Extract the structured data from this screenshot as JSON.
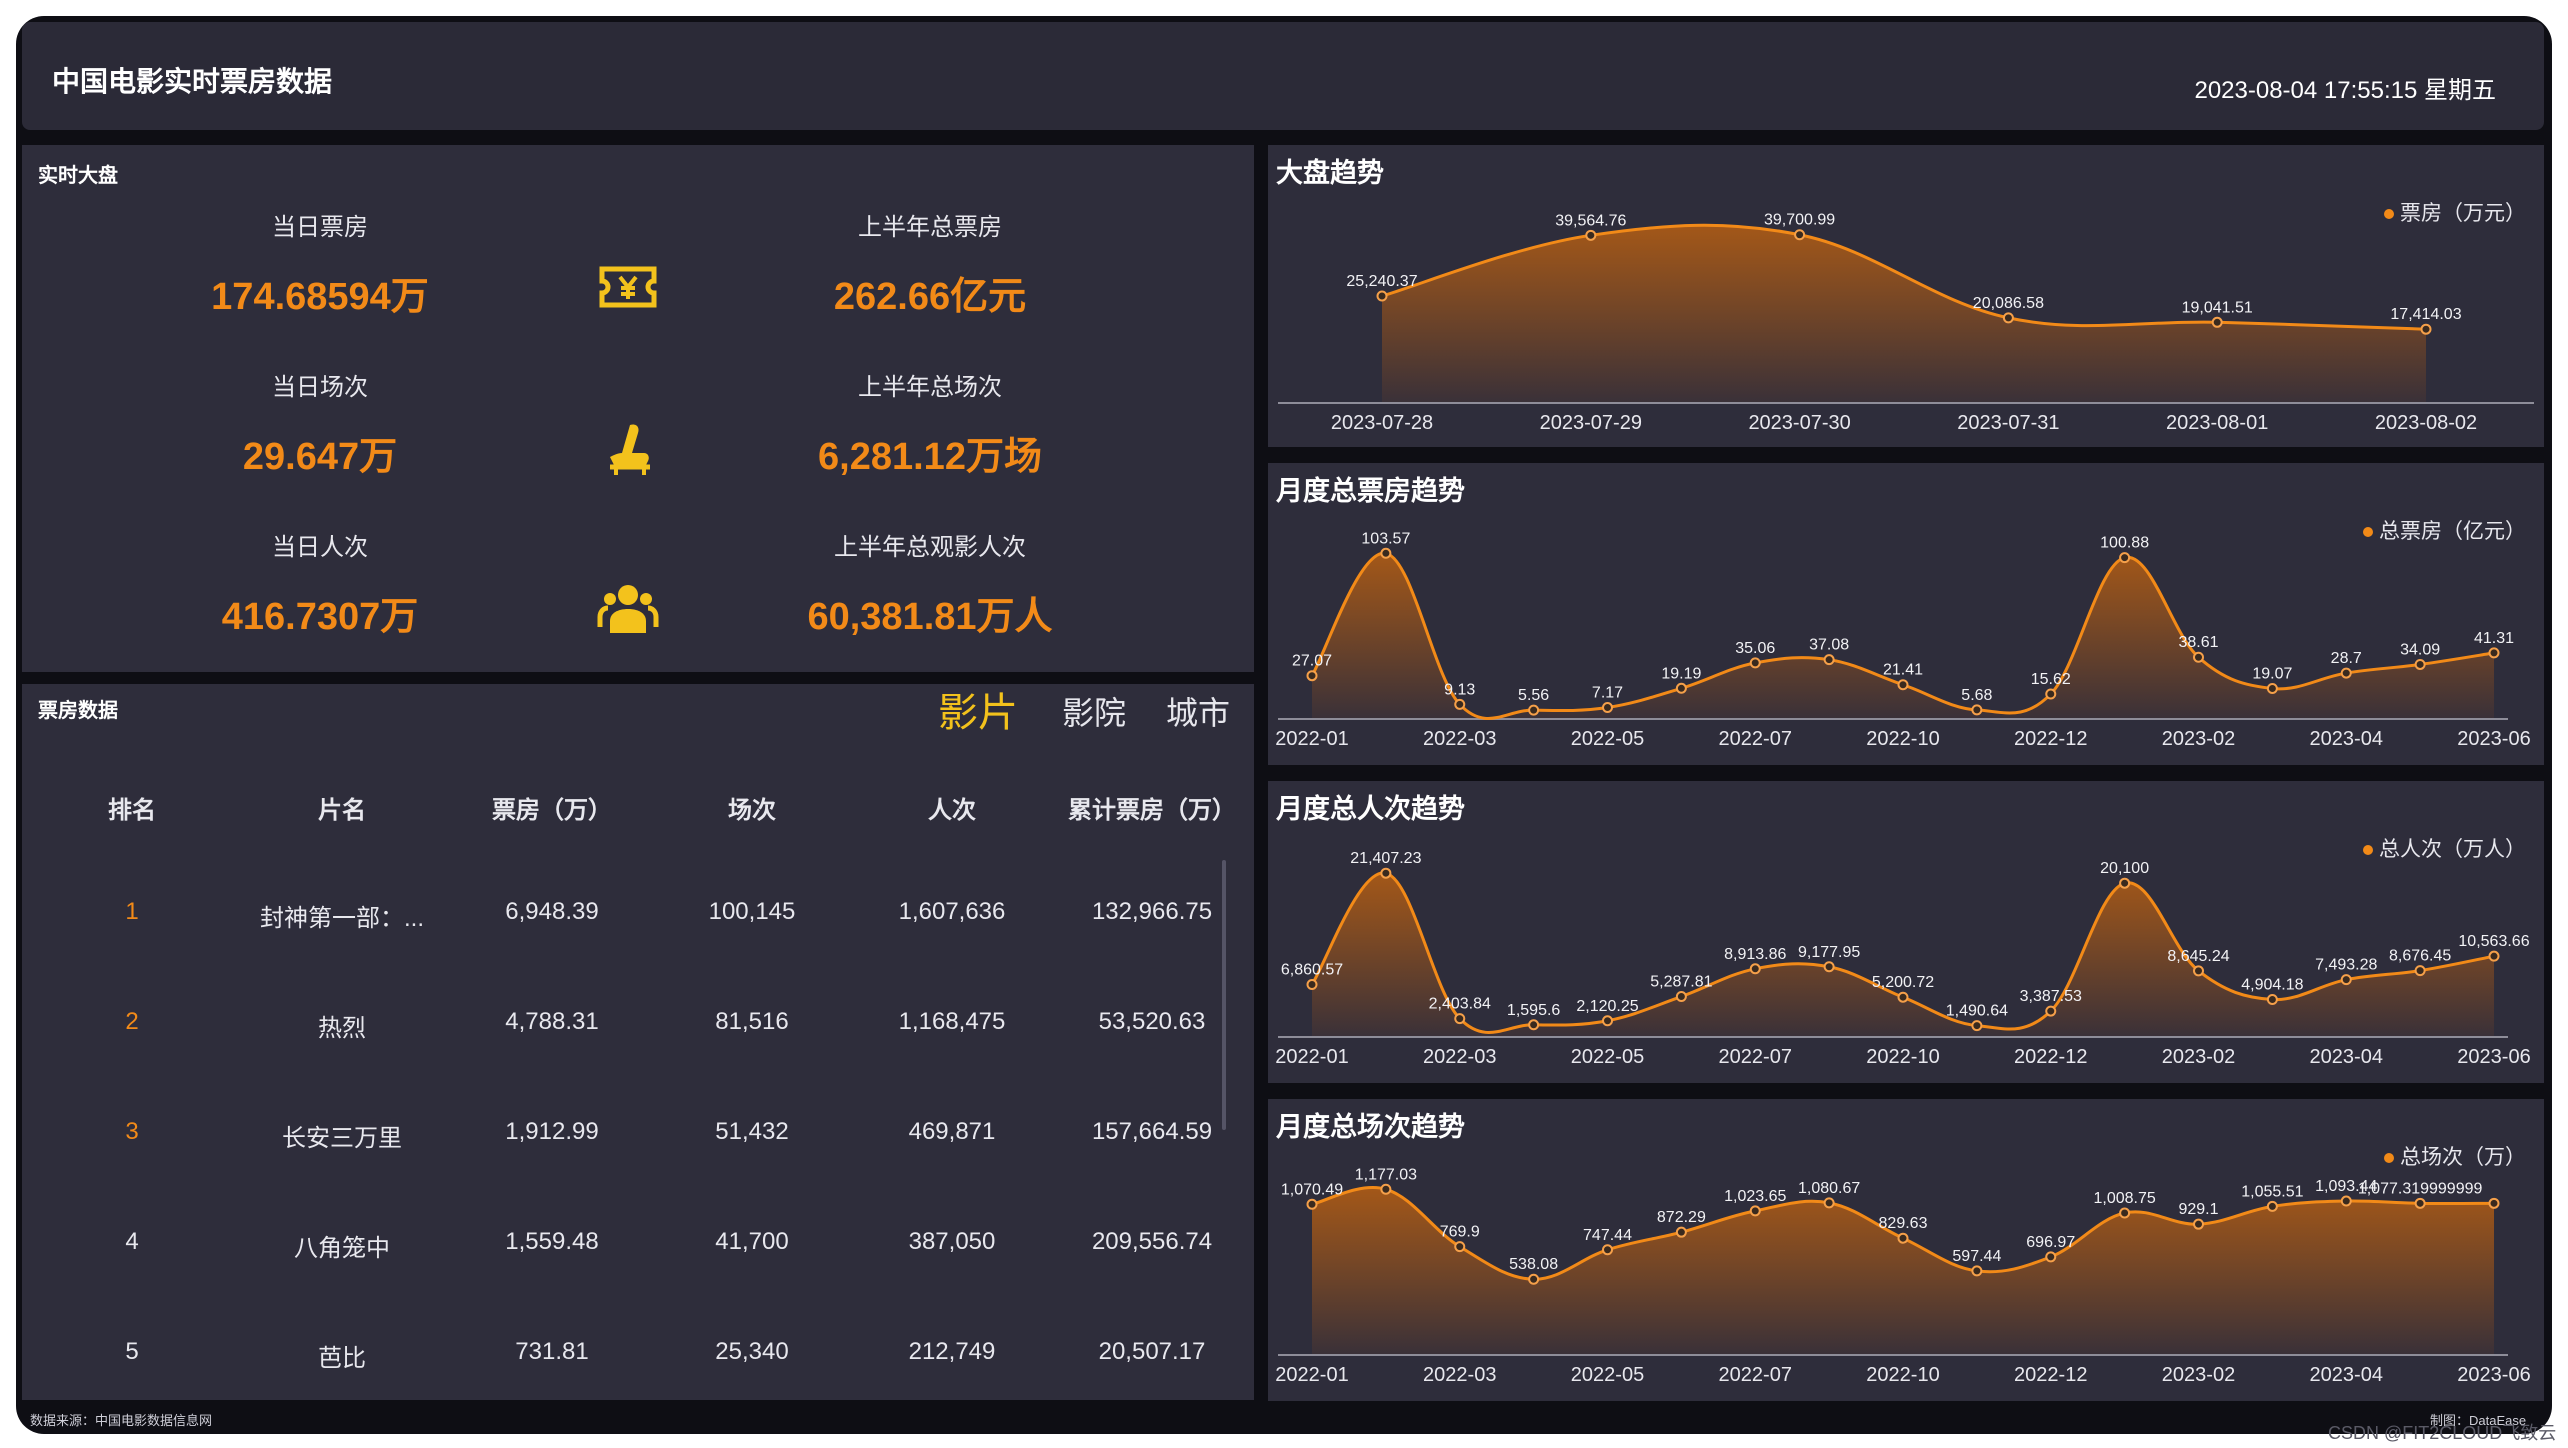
{
  "header": {
    "title": "中国电影实时票房数据",
    "datetime": "2023-08-04 17:55:15 星期五"
  },
  "realtime": {
    "title": "实时大盘",
    "kpis": [
      {
        "label": "当日票房",
        "value": "174.68594万",
        "icon": "ticket-yen-icon"
      },
      {
        "label": "上半年总票房",
        "value": "262.66亿元"
      },
      {
        "label": "当日场次",
        "value": "29.647万",
        "icon": "cinema-seat-icon"
      },
      {
        "label": "上半年总场次",
        "value": "6,281.12万场"
      },
      {
        "label": "当日人次",
        "value": "416.7307万",
        "icon": "people-icon"
      },
      {
        "label": "上半年总观影人次",
        "value": "60,381.81万人"
      }
    ],
    "icon_color": "#f3c21c"
  },
  "boxoffice": {
    "title": "票房数据",
    "tabs": [
      "影片",
      "影院",
      "城市"
    ],
    "active_tab": "影片",
    "columns": [
      "排名",
      "片名",
      "票房（万）",
      "场次",
      "人次",
      "累计票房（万）"
    ],
    "rows": [
      [
        "1",
        "封神第一部：...",
        "6,948.39",
        "100,145",
        "1,607,636",
        "132,966.75"
      ],
      [
        "2",
        "热烈",
        "4,788.31",
        "81,516",
        "1,168,475",
        "53,520.63"
      ],
      [
        "3",
        "长安三万里",
        "1,912.99",
        "51,432",
        "469,871",
        "157,664.59"
      ],
      [
        "4",
        "八角笼中",
        "1,559.48",
        "41,700",
        "387,050",
        "209,556.74"
      ],
      [
        "5",
        "芭比",
        "731.81",
        "25,340",
        "212,749",
        "20,507.17"
      ]
    ]
  },
  "footer": {
    "source": "数据来源：中国电影数据信息网",
    "credit": "制图：DataEase",
    "watermark": "CSDN @FIT2CLOUD飞致云"
  },
  "colors": {
    "accent": "#f28a18",
    "panel": "#2e2d3b",
    "background": "#0e0e14",
    "highlight": "#f3c21c"
  },
  "chart_data": [
    {
      "type": "area",
      "title": "大盘趋势",
      "series": [
        {
          "name": "票房（万元）",
          "values": [
            25240.37,
            39564.76,
            39700.99,
            20086.58,
            19041.51,
            17414.03
          ]
        }
      ],
      "labels": [
        "25,240.37",
        "39,564.76",
        "39,700.99",
        "20,086.58",
        "19,041.51",
        "17,414.03"
      ],
      "x": [
        "2023-07-28",
        "2023-07-29",
        "2023-07-30",
        "2023-07-31",
        "2023-08-01",
        "2023-08-02"
      ],
      "ticks": [
        "2023-07-28",
        "2023-07-29",
        "2023-07-30",
        "2023-07-31",
        "2023-08-01",
        "2023-08-02"
      ],
      "ylim": [
        0,
        42000
      ],
      "legend": "top-right",
      "grid": false
    },
    {
      "type": "area",
      "title": "月度总票房趋势",
      "series": [
        {
          "name": "总票房（亿元）",
          "values": [
            27.07,
            103.57,
            9.13,
            5.56,
            7.17,
            19.19,
            35.06,
            37.08,
            21.41,
            5.68,
            15.62,
            100.88,
            38.61,
            19.07,
            28.7,
            34.09,
            41.31
          ]
        }
      ],
      "labels": [
        "27.07",
        "103.57",
        "9.13",
        "5.56",
        "7.17",
        "19.19",
        "35.06",
        "37.08",
        "21.41",
        "5.68",
        "15.62",
        "100.88",
        "38.61",
        "19.07",
        "28.7",
        "34.09",
        "41.31"
      ],
      "ticks": [
        "2022-01",
        "2022-03",
        "2022-05",
        "2022-07",
        "2022-10",
        "2022-12",
        "2023-02",
        "2023-04",
        "2023-06"
      ],
      "ylim": [
        0,
        110
      ],
      "legend": "top-right",
      "grid": false
    },
    {
      "type": "area",
      "title": "月度总人次趋势",
      "series": [
        {
          "name": "总人次（万人）",
          "values": [
            6860.57,
            21407.23,
            2403.84,
            1595.6,
            2120.25,
            5287.81,
            8913.86,
            9177.95,
            5200.72,
            1490.64,
            3387.53,
            20100,
            8645.24,
            4904.18,
            7493.28,
            8676.45,
            10563.66
          ]
        }
      ],
      "labels": [
        "6,860.57",
        "21,407.23",
        "2,403.84",
        "1,595.6",
        "2,120.25",
        "5,287.81",
        "8,913.86",
        "9,177.95",
        "5,200.72",
        "1,490.64",
        "3,387.53",
        "20,100",
        "8,645.24",
        "4,904.18",
        "7,493.28",
        "8,676.45",
        "10,563.66"
      ],
      "ticks": [
        "2022-01",
        "2022-03",
        "2022-05",
        "2022-07",
        "2022-10",
        "2022-12",
        "2023-02",
        "2023-04",
        "2023-06"
      ],
      "ylim": [
        0,
        23000
      ],
      "legend": "top-right",
      "grid": false
    },
    {
      "type": "area",
      "title": "月度总场次趋势",
      "series": [
        {
          "name": "总场次（万）",
          "values": [
            1070.49,
            1177.03,
            769.9,
            538.08,
            747.44,
            872.29,
            1023.65,
            1080.67,
            829.63,
            597.44,
            696.97,
            1008.75,
            929.1,
            1055.51,
            1093.44,
            1077.32,
            1077.32
          ]
        }
      ],
      "labels": [
        "1,070.49",
        "1,177.03",
        "769.9",
        "538.08",
        "747.44",
        "872.29",
        "1,023.65",
        "1,080.67",
        "829.63",
        "597.44",
        "696.97",
        "1,008.75",
        "929.1",
        "1,055.51",
        "1,093.44",
        "1,077.319999999",
        ""
      ],
      "ticks": [
        "2022-01",
        "2022-03",
        "2022-05",
        "2022-07",
        "2022-10",
        "2022-12",
        "2023-02",
        "2023-04",
        "2023-06"
      ],
      "ylim": [
        0,
        1250
      ],
      "legend": "top-right",
      "grid": false
    }
  ]
}
